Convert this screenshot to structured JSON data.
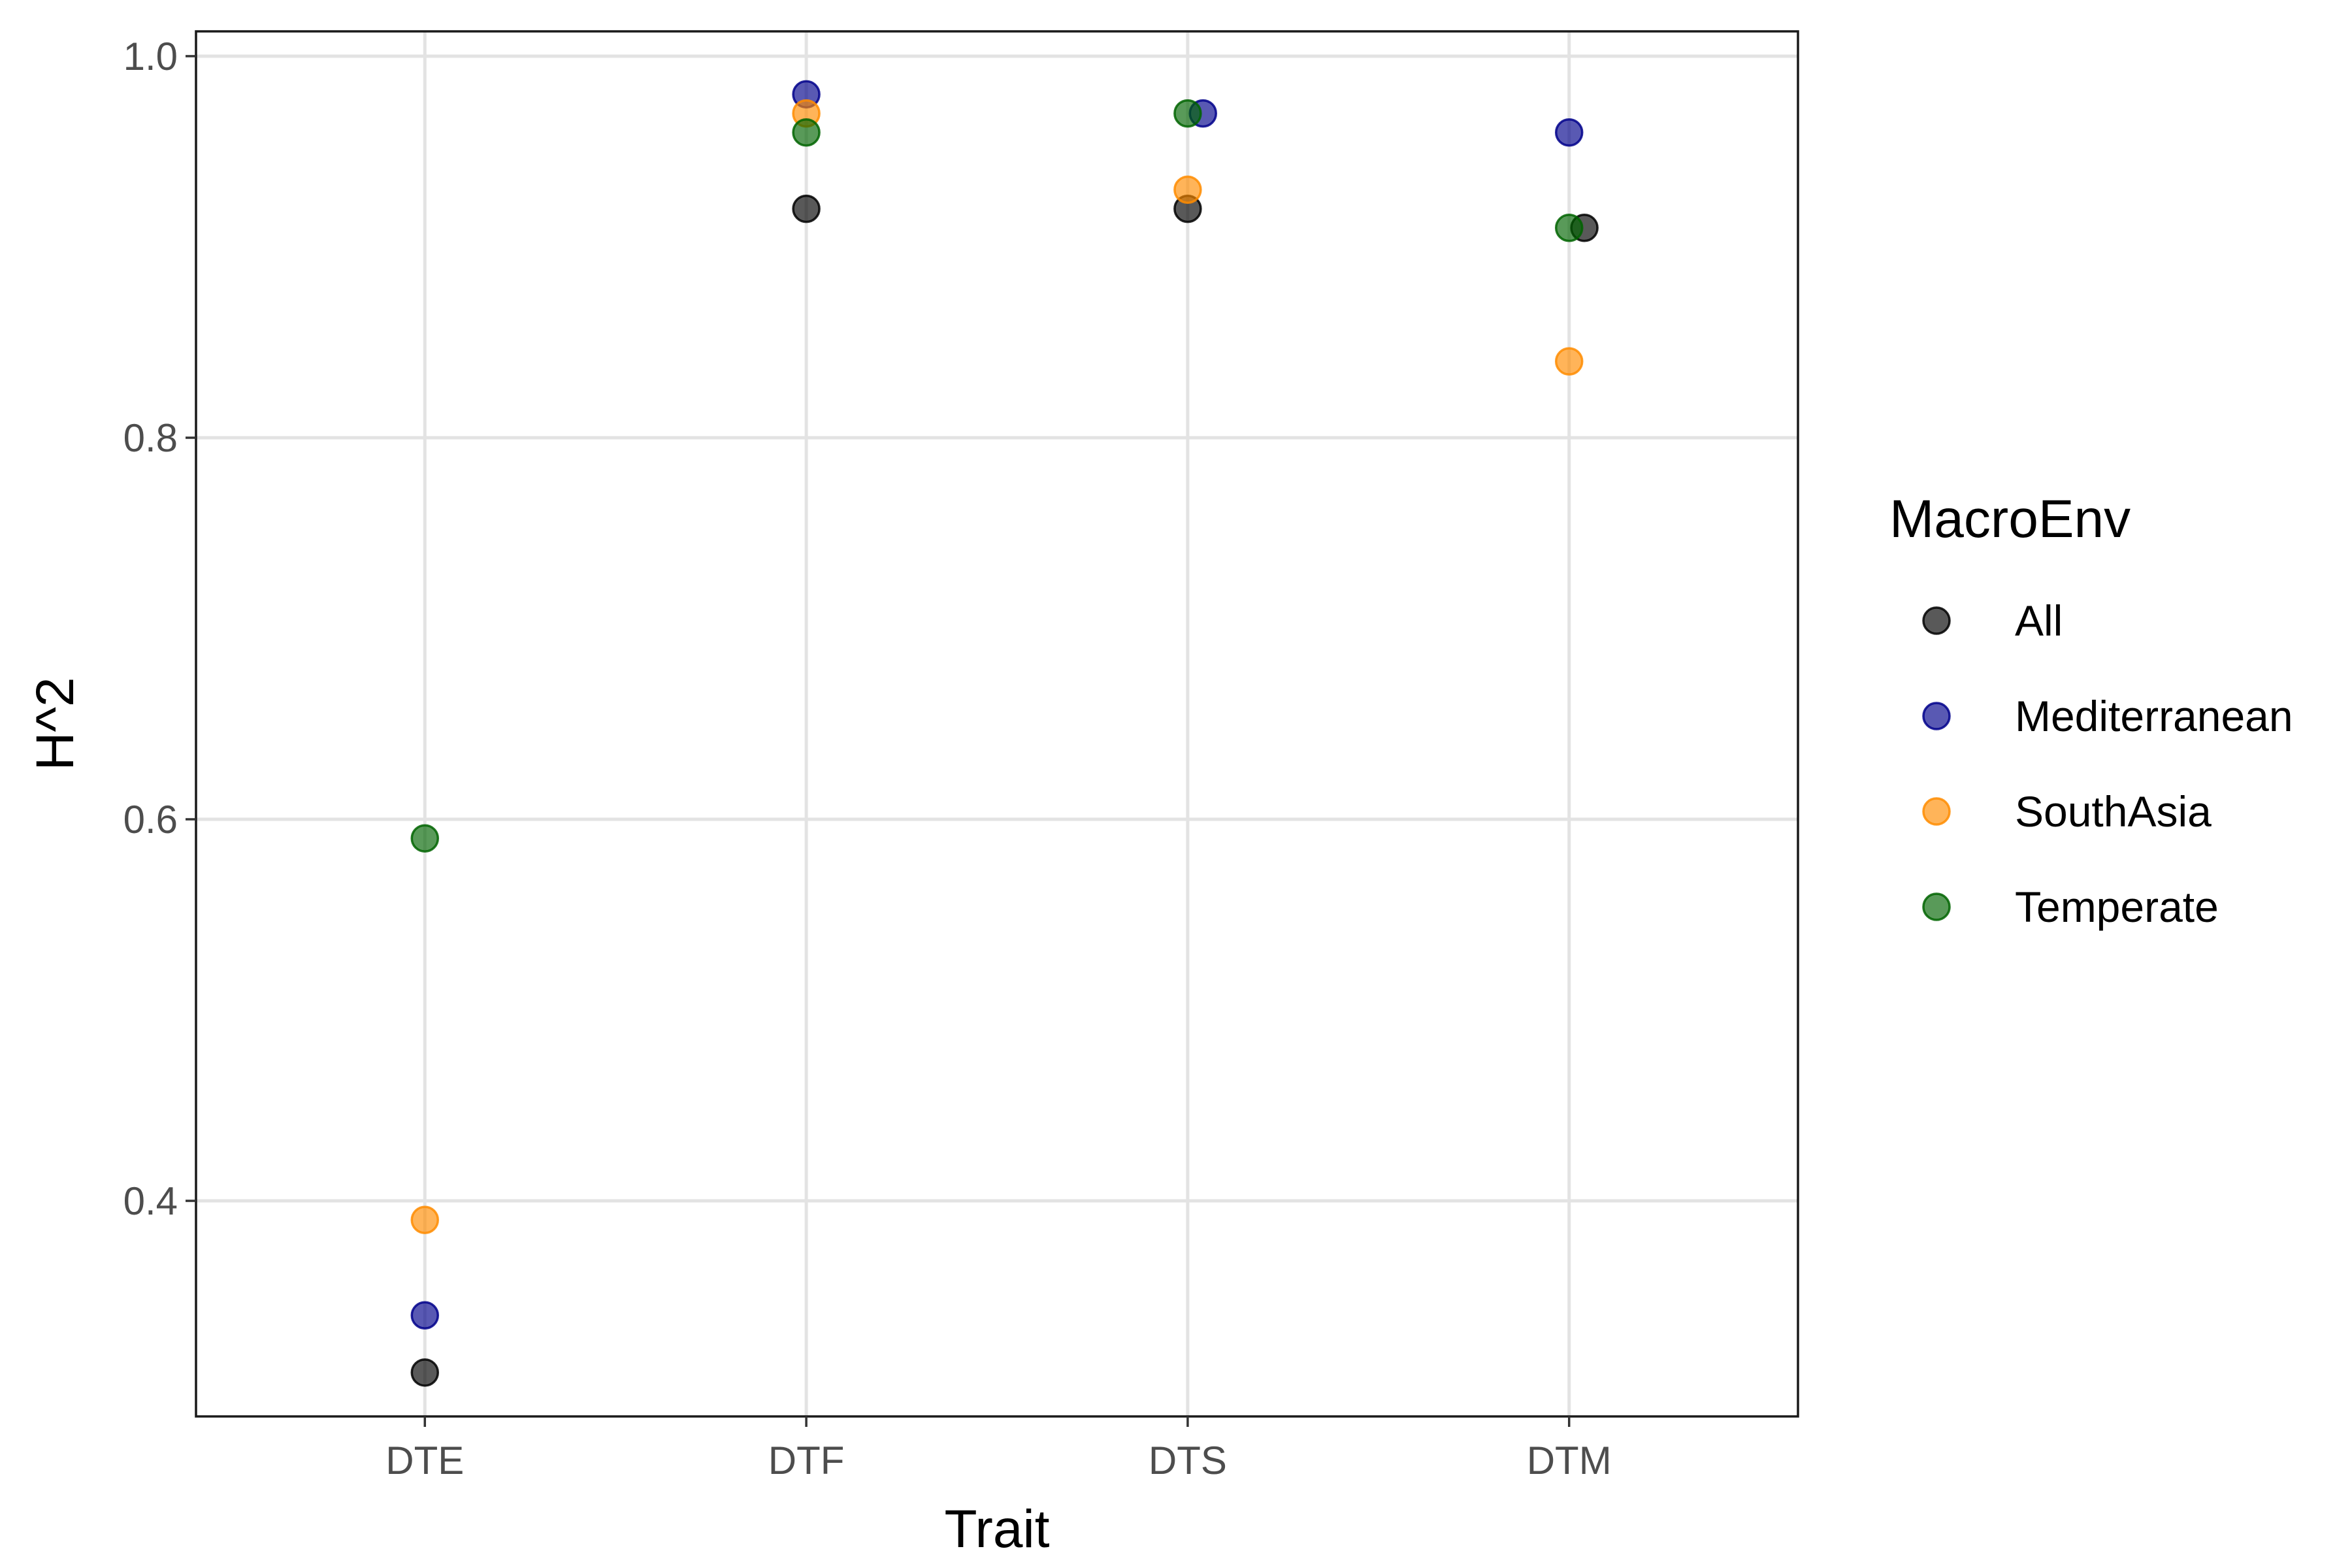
{
  "chart_data": {
    "type": "scatter",
    "title": "",
    "xlabel": "Trait",
    "ylabel": "H^2",
    "categories": [
      "DTE",
      "DTF",
      "DTS",
      "DTM"
    ],
    "ylim": [
      0.287,
      1.013
    ],
    "yticks": [
      0.4,
      0.6,
      0.8,
      1.0
    ],
    "ytick_labels": [
      "0.4",
      "0.6",
      "0.8",
      "1.0"
    ],
    "grid": true,
    "legend": {
      "title": "MacroEnv",
      "placement": "right"
    },
    "series": [
      {
        "name": "All",
        "color": "#000000",
        "values": [
          0.31,
          0.92,
          0.92,
          0.91
        ],
        "jitter": [
          0,
          0,
          0,
          0.04
        ]
      },
      {
        "name": "Mediterranean",
        "color": "#00008B",
        "values": [
          0.34,
          0.98,
          0.97,
          0.96
        ],
        "jitter": [
          0,
          0,
          0.04,
          0
        ]
      },
      {
        "name": "SouthAsia",
        "color": "#FF8C00",
        "values": [
          0.39,
          0.97,
          0.93,
          0.84
        ],
        "jitter": [
          0,
          0,
          0,
          0
        ]
      },
      {
        "name": "Temperate",
        "color": "#006400",
        "values": [
          0.59,
          0.96,
          0.97,
          0.91
        ],
        "jitter": [
          0,
          0,
          0,
          0
        ]
      }
    ]
  }
}
